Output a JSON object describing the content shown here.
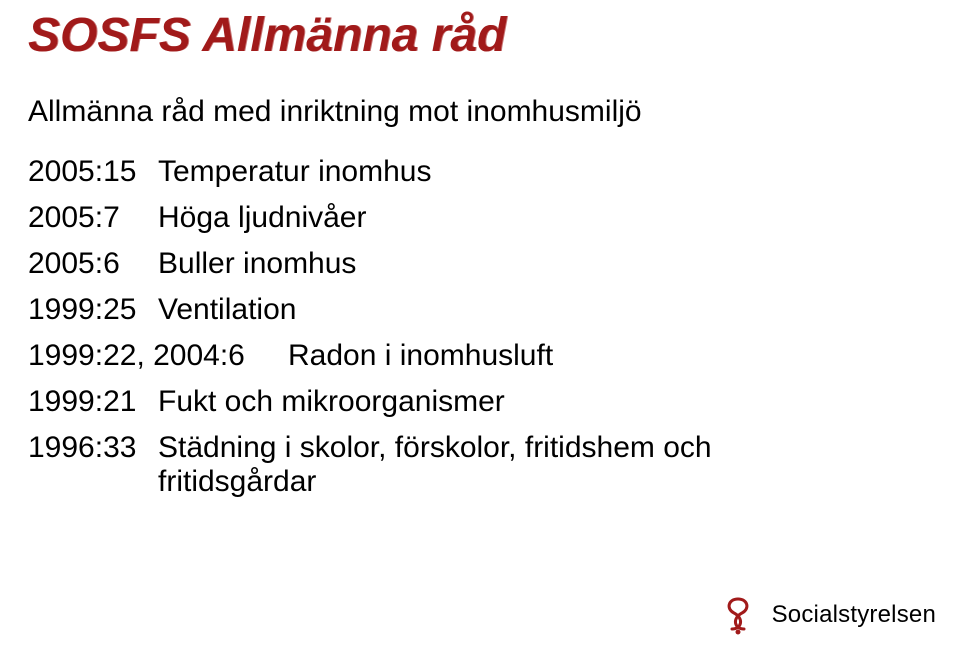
{
  "title": "SOSFS Allmänna råd",
  "subtitle": "Allmänna råd med inriktning mot inomhusmiljö",
  "items": [
    {
      "code": "2005:15",
      "label": "Temperatur inomhus",
      "wide": false
    },
    {
      "code": "2005:7",
      "label": "Höga ljudnivåer",
      "wide": false
    },
    {
      "code": "2005:6",
      "label": "Buller inomhus",
      "wide": false
    },
    {
      "code": "1999:25",
      "label": "Ventilation",
      "wide": false
    },
    {
      "code": "1999:22, 2004:6",
      "label": "Radon i inomhusluft",
      "wide": true
    },
    {
      "code": "1999:21",
      "label": "Fukt och mikroorganismer",
      "wide": false
    },
    {
      "code": "1996:33",
      "label": "Städning i skolor, förskolor, fritidshem och fritidsgårdar",
      "wide": false
    }
  ],
  "footer": {
    "org": "Socialstyrelsen",
    "logo_color": "#a11a1a"
  },
  "colors": {
    "title": "#a11a1a",
    "text": "#000000",
    "background": "#ffffff"
  },
  "typography": {
    "title_size_pt": 36,
    "subtitle_size_pt": 22,
    "list_size_pt": 22,
    "footer_size_pt": 18,
    "family": "Arial"
  }
}
